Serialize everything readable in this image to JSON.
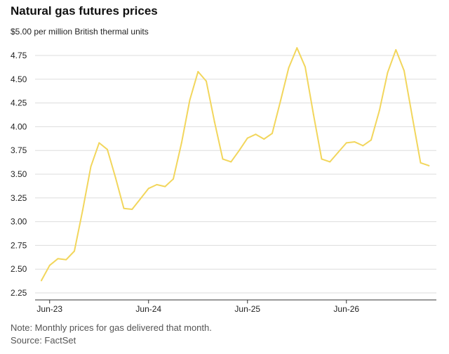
{
  "header": {
    "title": "Natural gas futures prices"
  },
  "footer": {
    "note": "Note: Monthly prices for gas delivered that month.",
    "source": "Source: FactSet"
  },
  "chart_data": {
    "type": "line",
    "title": "Natural gas futures prices",
    "ylabel": "$5.00 per million British thermal units",
    "ylim": [
      2.25,
      5.0
    ],
    "yticks": [
      2.25,
      2.5,
      2.75,
      3.0,
      3.25,
      3.5,
      3.75,
      4.0,
      4.25,
      4.5,
      4.75
    ],
    "ytick_labels": [
      "2.25",
      "2.50",
      "2.75",
      "3.00",
      "3.25",
      "3.50",
      "3.75",
      "4.00",
      "4.25",
      "4.50",
      "4.75"
    ],
    "xticks": [
      "2023-06",
      "2024-06",
      "2025-06",
      "2026-06"
    ],
    "xtick_labels": [
      "Jun-23",
      "Jun-24",
      "Jun-25",
      "Jun-26"
    ],
    "grid": true,
    "line_color": "#f2d65c",
    "grid_color": "#dddddd",
    "axis_color": "#333333",
    "series": [
      {
        "x": [
          "2023-05",
          "2023-06",
          "2023-07",
          "2023-08",
          "2023-09",
          "2023-10",
          "2023-11",
          "2023-12",
          "2024-01",
          "2024-02",
          "2024-03",
          "2024-04",
          "2024-05",
          "2024-06",
          "2024-07",
          "2024-08",
          "2024-09",
          "2024-10",
          "2024-11",
          "2024-12",
          "2025-01",
          "2025-02",
          "2025-03",
          "2025-04",
          "2025-05",
          "2025-06",
          "2025-07",
          "2025-08",
          "2025-09",
          "2025-10",
          "2025-11",
          "2025-12",
          "2026-01",
          "2026-02",
          "2026-03",
          "2026-04",
          "2026-05",
          "2026-06",
          "2026-07",
          "2026-08",
          "2026-09",
          "2026-10",
          "2026-11",
          "2026-12",
          "2027-01",
          "2027-02",
          "2027-03",
          "2027-04"
        ],
        "values": [
          2.38,
          2.54,
          2.61,
          2.6,
          2.69,
          3.12,
          3.58,
          3.83,
          3.76,
          3.46,
          3.14,
          3.13,
          3.24,
          3.35,
          3.39,
          3.37,
          3.45,
          3.83,
          4.28,
          4.58,
          4.48,
          4.05,
          3.66,
          3.63,
          3.75,
          3.88,
          3.92,
          3.87,
          3.93,
          4.27,
          4.62,
          4.83,
          4.63,
          4.13,
          3.66,
          3.63,
          3.73,
          3.83,
          3.84,
          3.8,
          3.86,
          4.17,
          4.57,
          4.81,
          4.59,
          4.1,
          3.62,
          3.59
        ]
      }
    ]
  }
}
